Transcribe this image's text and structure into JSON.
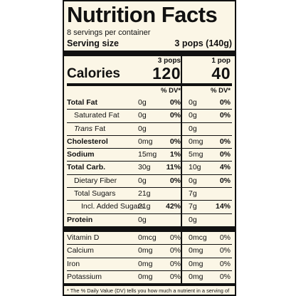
{
  "title": "Nutrition Facts",
  "servings_per_container": "8 servings per container",
  "serving_size": {
    "label": "Serving size",
    "value": "3 pops (140g)"
  },
  "calories": {
    "label": "Calories",
    "col1": {
      "serving": "3 pops",
      "value": "120"
    },
    "col2": {
      "serving": "1 pop",
      "value": "40"
    }
  },
  "dv_header": "% DV*",
  "nutrients": [
    {
      "name": "Total Fat",
      "bold": true,
      "amt1": "0g",
      "pct1": "0%",
      "amt2": "0g",
      "pct2": "0%"
    },
    {
      "name": "Saturated Fat",
      "indent": 1,
      "amt1": "0g",
      "pct1": "0%",
      "amt2": "0g",
      "pct2": "0%"
    },
    {
      "name_italic": "Trans",
      "name": " Fat",
      "indent": 1,
      "amt1": "0g",
      "pct1": "",
      "amt2": "0g",
      "pct2": ""
    },
    {
      "name": "Cholesterol",
      "bold": true,
      "amt1": "0mg",
      "pct1": "0%",
      "amt2": "0mg",
      "pct2": "0%"
    },
    {
      "name": "Sodium",
      "bold": true,
      "amt1": "15mg",
      "pct1": "1%",
      "amt2": "5mg",
      "pct2": "0%"
    },
    {
      "name": "Total Carb.",
      "bold": true,
      "amt1": "30g",
      "pct1": "11%",
      "amt2": "10g",
      "pct2": "4%"
    },
    {
      "name": "Dietary Fiber",
      "indent": 1,
      "amt1": "0g",
      "pct1": "0%",
      "amt2": "0g",
      "pct2": "0%"
    },
    {
      "name": "Total Sugars",
      "indent": 1,
      "amt1": "21g",
      "pct1": "",
      "amt2": "7g",
      "pct2": ""
    },
    {
      "name": "Incl. Added Sugars",
      "indent": 2,
      "amt1": "21g",
      "pct1": "42%",
      "amt2": "7g",
      "pct2": "14%"
    },
    {
      "name": "Protein",
      "bold": true,
      "amt1": "0g",
      "pct1": "",
      "amt2": "0g",
      "pct2": ""
    }
  ],
  "vitamins": [
    {
      "name": "Vitamin D",
      "amt1": "0mcg",
      "pct1": "0%",
      "amt2": "0mcg",
      "pct2": "0%"
    },
    {
      "name": "Calcium",
      "amt1": "0mg",
      "pct1": "0%",
      "amt2": "0mg",
      "pct2": "0%"
    },
    {
      "name": "Iron",
      "amt1": "0mg",
      "pct1": "0%",
      "amt2": "0mg",
      "pct2": "0%"
    },
    {
      "name": "Potassium",
      "amt1": "0mg",
      "pct1": "0%",
      "amt2": "0mg",
      "pct2": "0%"
    }
  ],
  "footnote": "* The % Daily Value (DV) tells you how much a nutrient in a serving of food contributes to a daily diet. 2,000 calories a day is used for general nutrition advice.",
  "colors": {
    "background": "#fbf6e6",
    "ink": "#111111"
  }
}
